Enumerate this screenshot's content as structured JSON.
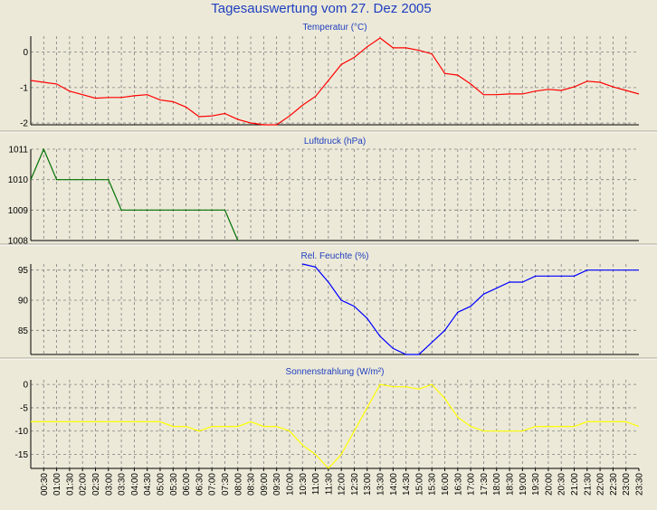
{
  "page": {
    "title": "Tagesauswertung vom 27. Dez 2005"
  },
  "chart_data": [
    {
      "type": "line",
      "title": "Temperatur (°C)",
      "color": "#ff0000",
      "ylim": [
        -2.05,
        0.45
      ],
      "yticks": [
        0,
        -1,
        -2
      ],
      "ytick_labels": [
        "0",
        "-1",
        "-2"
      ],
      "x": [
        "00:00",
        "00:30",
        "01:00",
        "01:30",
        "02:00",
        "02:30",
        "03:00",
        "03:30",
        "04:00",
        "04:30",
        "05:00",
        "05:30",
        "06:00",
        "06:30",
        "07:00",
        "07:30",
        "08:00",
        "08:30",
        "09:00",
        "09:30",
        "10:00",
        "10:30",
        "11:00",
        "11:30",
        "12:00",
        "12:30",
        "13:00",
        "13:30",
        "14:00",
        "14:30",
        "15:00",
        "15:30",
        "16:00",
        "16:30",
        "17:00",
        "17:30",
        "18:00",
        "18:30",
        "19:00",
        "19:30",
        "20:00",
        "20:30",
        "21:00",
        "21:30",
        "22:00",
        "22:30",
        "23:00",
        "23:30"
      ],
      "values": [
        -0.8,
        -0.85,
        -0.9,
        -1.1,
        -1.2,
        -1.3,
        -1.28,
        -1.28,
        -1.23,
        -1.2,
        -1.35,
        -1.4,
        -1.55,
        -1.82,
        -1.8,
        -1.73,
        -1.9,
        -2.0,
        -2.05,
        -2.05,
        -1.8,
        -1.5,
        -1.25,
        -0.8,
        -0.35,
        -0.15,
        0.15,
        0.4,
        0.12,
        0.12,
        0.05,
        -0.05,
        -0.6,
        -0.65,
        -0.9,
        -1.2,
        -1.2,
        -1.18,
        -1.18,
        -1.1,
        -1.05,
        -1.08,
        -0.98,
        -0.82,
        -0.85,
        -0.98,
        -1.08,
        -1.18
      ],
      "grid": true
    },
    {
      "type": "line",
      "title": "Luftdruck (hPa)",
      "color": "#007000",
      "ylim": [
        1008,
        1011
      ],
      "yticks": [
        1011,
        1010,
        1009,
        1008
      ],
      "ytick_labels": [
        "1011",
        "1010",
        "1009",
        "1008"
      ],
      "x": [
        "00:00",
        "00:30",
        "01:00",
        "01:30",
        "02:00",
        "02:30",
        "03:00",
        "03:30",
        "04:00",
        "04:30",
        "05:00",
        "05:30",
        "06:00",
        "06:30",
        "07:00",
        "07:30",
        "08:00"
      ],
      "values": [
        1010,
        1011,
        1010,
        1010,
        1010,
        1010,
        1010,
        1009,
        1009,
        1009,
        1009,
        1009,
        1009,
        1009,
        1009,
        1009,
        1008
      ],
      "grid": true
    },
    {
      "type": "line",
      "title": "Rel. Feuchte (%)",
      "color": "#0000ff",
      "ylim": [
        81,
        96
      ],
      "yticks": [
        95,
        90,
        85
      ],
      "ytick_labels": [
        "95",
        "90",
        "85"
      ],
      "x": [
        "10:30",
        "11:00",
        "11:30",
        "12:00",
        "12:30",
        "13:00",
        "13:30",
        "14:00",
        "14:30",
        "15:00",
        "15:30",
        "16:00",
        "16:30",
        "17:00",
        "17:30",
        "18:00",
        "18:30",
        "19:00",
        "19:30",
        "20:00",
        "20:30",
        "21:00",
        "21:30",
        "22:00",
        "22:30",
        "23:00",
        "23:30"
      ],
      "values": [
        96,
        95.5,
        93,
        90,
        89,
        87,
        84,
        82,
        81,
        81,
        83,
        85,
        88,
        89,
        91,
        92,
        93,
        93,
        94,
        94,
        94,
        94,
        95,
        95,
        95,
        95,
        95
      ],
      "grid": true
    },
    {
      "type": "line",
      "title": "Sonnenstrahlung (W/m²)",
      "color": "#ffff00",
      "ylim": [
        -18,
        1
      ],
      "yticks": [
        0,
        -5,
        -10,
        -15
      ],
      "ytick_labels": [
        "0",
        "-5",
        "-10",
        "-15"
      ],
      "x": [
        "00:00",
        "00:30",
        "01:00",
        "01:30",
        "02:00",
        "02:30",
        "03:00",
        "03:30",
        "04:00",
        "04:30",
        "05:00",
        "05:30",
        "06:00",
        "06:30",
        "07:00",
        "07:30",
        "08:00",
        "08:30",
        "09:00",
        "09:30",
        "10:00",
        "10:30",
        "11:00",
        "11:30",
        "12:00",
        "12:30",
        "13:00",
        "13:30",
        "14:00",
        "14:30",
        "15:00",
        "15:30",
        "16:00",
        "16:30",
        "17:00",
        "17:30",
        "18:00",
        "18:30",
        "19:00",
        "19:30",
        "20:00",
        "20:30",
        "21:00",
        "21:30",
        "22:00",
        "22:30",
        "23:00",
        "23:30"
      ],
      "values": [
        -8,
        -8,
        -8,
        -8,
        -8,
        -8,
        -8,
        -8,
        -8,
        -8,
        -8,
        -9,
        -9,
        -10,
        -9,
        -9,
        -9,
        -8,
        -9,
        -9,
        -10,
        -13,
        -15,
        -18,
        -15,
        -10,
        -5,
        0,
        -0.5,
        -0.5,
        -1,
        0,
        -3,
        -7,
        -9,
        -10,
        -10,
        -10,
        -10,
        -9,
        -9,
        -9,
        -9,
        -8,
        -8,
        -8,
        -8,
        -9
      ],
      "grid": true
    }
  ],
  "x_axis": {
    "tick_labels": [
      "00:30",
      "01:00",
      "01:30",
      "02:00",
      "02:30",
      "03:00",
      "03:30",
      "04:00",
      "04:30",
      "05:00",
      "05:30",
      "06:00",
      "06:30",
      "07:00",
      "07:30",
      "08:00",
      "08:30",
      "09:00",
      "09:30",
      "10:00",
      "10:30",
      "11:00",
      "11:30",
      "12:00",
      "12:30",
      "13:00",
      "13:30",
      "14:00",
      "14:30",
      "15:00",
      "15:30",
      "16:00",
      "16:30",
      "17:00",
      "17:30",
      "18:00",
      "18:30",
      "19:00",
      "19:30",
      "20:00",
      "20:30",
      "21:00",
      "21:30",
      "22:00",
      "22:30",
      "23:00",
      "23:30"
    ]
  },
  "colors": {
    "background": "#ece9d8",
    "plot": "#ece9d8",
    "grid": "#808080",
    "title": "#1f3fbf"
  }
}
